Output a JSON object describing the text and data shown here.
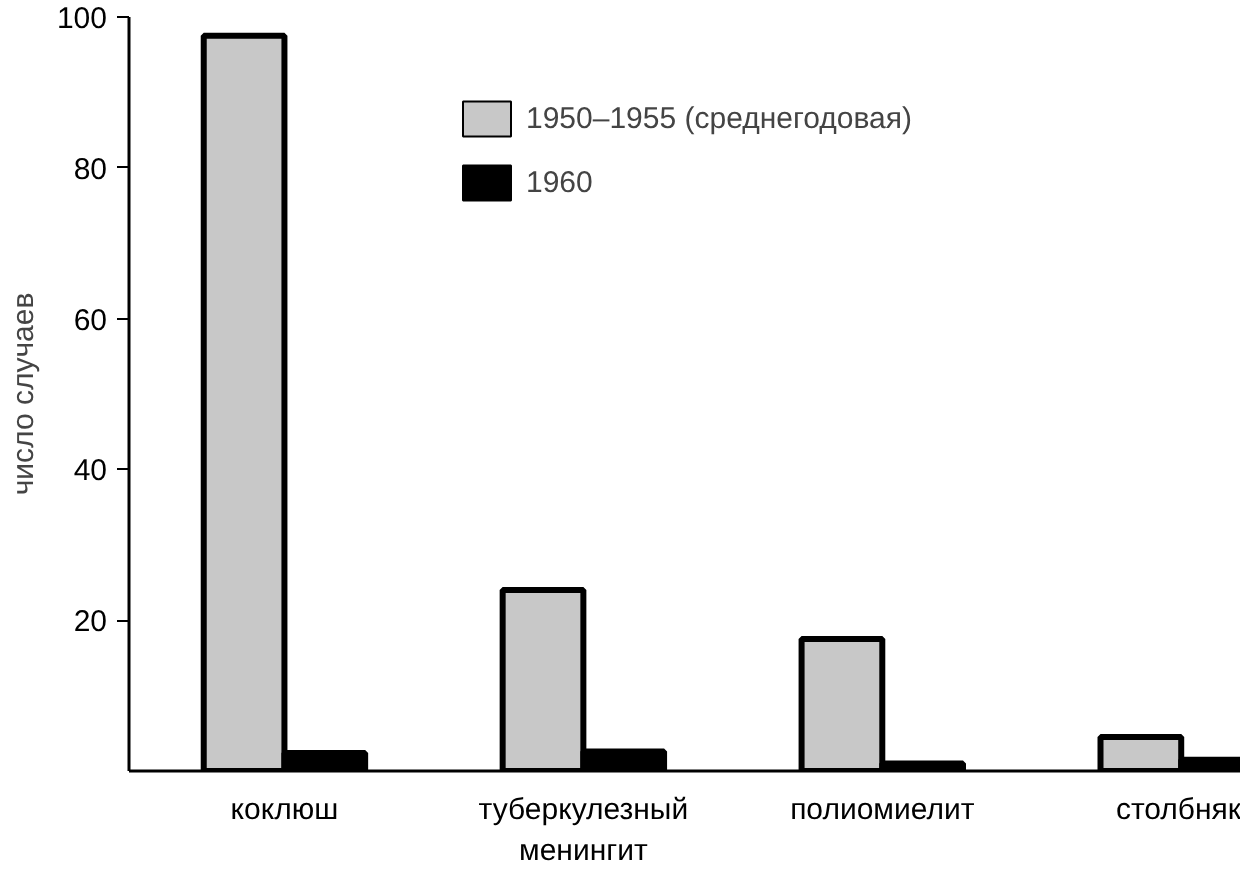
{
  "chart_data": {
    "type": "bar",
    "ylabel": "число случаев",
    "categories": [
      "коклюш",
      "туберкулезный\nменингит",
      "полиомиелит",
      "столбняк"
    ],
    "series": [
      {
        "name": "1950–1955 (среднегодовая)",
        "color": "#c8c8c8",
        "values": [
          97.5,
          24,
          17.5,
          4.5
        ]
      },
      {
        "name": "1960",
        "color": "#000000",
        "values": [
          2.4,
          2.6,
          1,
          1.5
        ]
      }
    ],
    "ylim": [
      0,
      100
    ],
    "yticks": [
      20,
      40,
      60,
      80,
      100
    ],
    "grid": false,
    "legend": "top"
  }
}
